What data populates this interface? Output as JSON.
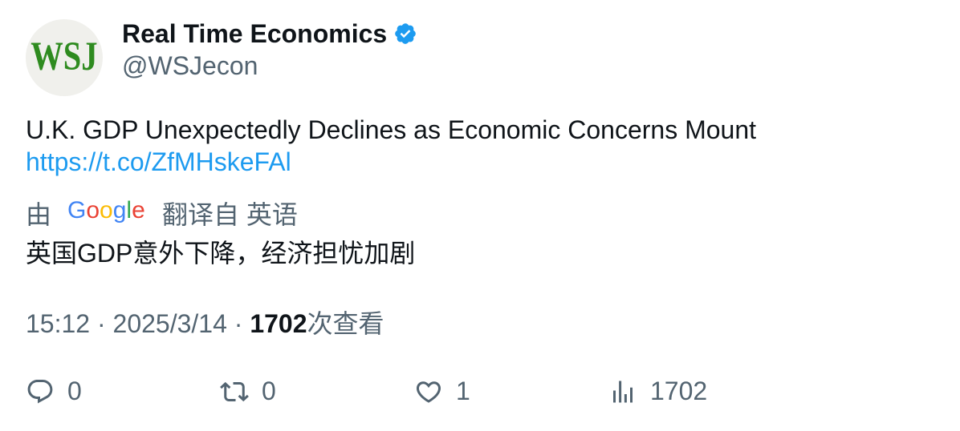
{
  "author": {
    "display_name": "Real Time Economics",
    "handle": "@WSJecon",
    "avatar_text": "WSJ",
    "verified": true
  },
  "tweet": {
    "text": "U.K. GDP Unexpectedly Declines as Economic Concerns Mount",
    "link": "https://t.co/ZfMHskeFAl"
  },
  "translation": {
    "by_label": "由",
    "provider": "Google",
    "from_label": "翻译自 英语",
    "text": "英国GDP意外下降，经济担忧加剧"
  },
  "meta": {
    "time": "15:12",
    "separator": "·",
    "date": "2025/3/14",
    "views_count": "1702",
    "views_label": "次查看"
  },
  "actions": {
    "replies": "0",
    "retweets": "0",
    "likes": "1",
    "views": "1702"
  },
  "colors": {
    "accent": "#1d9bf0",
    "secondary_text": "#536471",
    "wsj_green": "#2e8b1f",
    "avatar_bg": "#f0f0ec"
  }
}
